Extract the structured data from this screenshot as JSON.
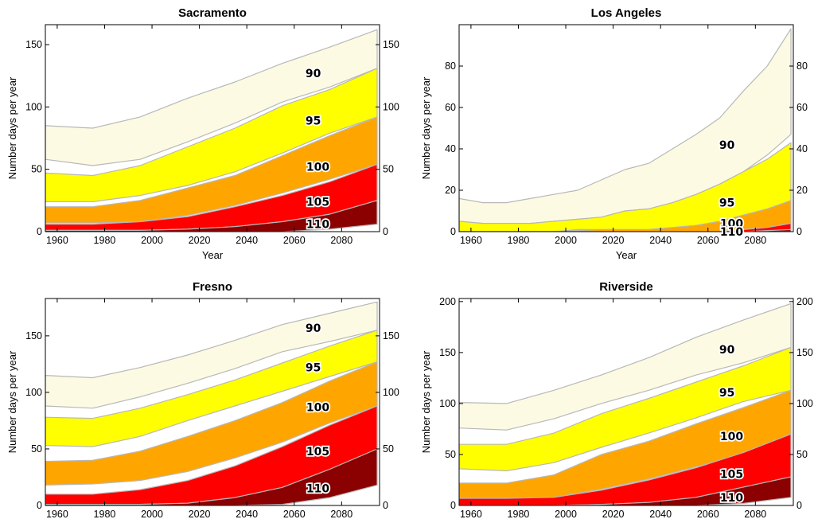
{
  "colors": {
    "90": "#fcfae3",
    "95": "#ffff00",
    "100": "#ffa500",
    "105": "#ff0000",
    "110": "#8b0000",
    "boundary": "#b8b8b8"
  },
  "chart_data": [
    {
      "type": "area",
      "title": "Sacramento",
      "xlabel": "Year",
      "ylabel": "Number days per year",
      "xlim": [
        1955,
        2096
      ],
      "ylim": [
        0,
        166
      ],
      "xticks": [
        1960,
        1980,
        2000,
        2020,
        2040,
        2060,
        2080
      ],
      "yticks": [
        0,
        50,
        100,
        150
      ],
      "series": [
        {
          "name": "90",
          "x": [
            1955,
            1975,
            1995,
            2015,
            2035,
            2055,
            2075,
            2095
          ],
          "lower": [
            58,
            53,
            58,
            72,
            87,
            104,
            116,
            131
          ],
          "upper": [
            85,
            83,
            92,
            107,
            120,
            135,
            148,
            162
          ]
        },
        {
          "name": "95",
          "x": [
            1955,
            1975,
            1995,
            2015,
            2035,
            2055,
            2075,
            2095
          ],
          "lower": [
            24,
            24,
            29,
            37,
            48,
            63,
            79,
            92
          ],
          "upper": [
            47,
            45,
            53,
            68,
            83,
            101,
            114,
            131
          ]
        },
        {
          "name": "100",
          "x": [
            1955,
            1975,
            1995,
            2015,
            2035,
            2055,
            2075,
            2095
          ],
          "lower": [
            7,
            7,
            8,
            13,
            21,
            31,
            42,
            54
          ],
          "upper": [
            20,
            20,
            25,
            35,
            45,
            61,
            77,
            92
          ]
        },
        {
          "name": "105",
          "x": [
            1955,
            1975,
            1995,
            2015,
            2035,
            2055,
            2075,
            2095
          ],
          "lower": [
            1,
            1,
            1,
            2,
            4,
            8,
            14,
            25
          ],
          "upper": [
            6,
            6,
            8,
            12,
            20,
            29,
            40,
            54
          ]
        },
        {
          "name": "110",
          "x": [
            1955,
            1975,
            1995,
            2015,
            2035,
            2055,
            2075,
            2095
          ],
          "lower": [
            0,
            0,
            0,
            0,
            0,
            0,
            2,
            6
          ],
          "upper": [
            1,
            1,
            1,
            2,
            4,
            8,
            14,
            25
          ]
        }
      ]
    },
    {
      "type": "area",
      "title": "Los Angeles",
      "xlabel": "Year",
      "ylabel": "Number days per year",
      "xlim": [
        1955,
        2096
      ],
      "ylim": [
        0,
        100
      ],
      "xticks": [
        1960,
        1980,
        2000,
        2020,
        2040,
        2060,
        2080
      ],
      "yticks": [
        0,
        20,
        40,
        60,
        80
      ],
      "series": [
        {
          "name": "90",
          "x": [
            1955,
            1965,
            1975,
            1985,
            1995,
            2005,
            2015,
            2025,
            2035,
            2045,
            2055,
            2065,
            2075,
            2085,
            2095
          ],
          "lower": [
            5,
            4,
            4,
            4,
            5,
            6,
            7,
            10,
            11,
            14,
            18,
            23,
            29,
            37,
            47
          ],
          "upper": [
            16,
            14,
            14,
            16,
            18,
            20,
            25,
            30,
            33,
            40,
            47,
            55,
            68,
            80,
            98
          ]
        },
        {
          "name": "95",
          "x": [
            1955,
            1965,
            1975,
            1985,
            1995,
            2005,
            2015,
            2025,
            2035,
            2045,
            2055,
            2065,
            2075,
            2085,
            2095
          ],
          "lower": [
            0,
            0,
            0,
            0,
            0,
            1,
            1,
            1,
            1,
            2,
            3,
            5,
            8,
            11,
            15
          ],
          "upper": [
            5,
            4,
            4,
            4,
            5,
            6,
            7,
            10,
            11,
            14,
            18,
            23,
            29,
            35,
            43
          ]
        },
        {
          "name": "100",
          "x": [
            1955,
            1975,
            1995,
            2015,
            2035,
            2055,
            2065,
            2075,
            2085,
            2095
          ],
          "lower": [
            0,
            0,
            0,
            0,
            0,
            0,
            0,
            1,
            2,
            4
          ],
          "upper": [
            0,
            0,
            0,
            1,
            1,
            3,
            5,
            8,
            11,
            15
          ]
        },
        {
          "name": "105",
          "x": [
            1955,
            1975,
            1995,
            2015,
            2035,
            2055,
            2065,
            2075,
            2085,
            2095
          ],
          "lower": [
            0,
            0,
            0,
            0,
            0,
            0,
            0,
            0,
            0,
            1
          ],
          "upper": [
            0,
            0,
            0,
            0,
            0,
            0,
            0,
            1,
            2,
            4
          ]
        },
        {
          "name": "110",
          "x": [
            1955,
            2055,
            2075,
            2095
          ],
          "lower": [
            0,
            0,
            0,
            0
          ],
          "upper": [
            0,
            0,
            0,
            1
          ]
        }
      ]
    },
    {
      "type": "area",
      "title": "Fresno",
      "xlabel": "",
      "ylabel": "Number days per year",
      "xlim": [
        1955,
        2096
      ],
      "ylim": [
        0,
        183
      ],
      "xticks": [
        1960,
        1980,
        2000,
        2020,
        2040,
        2060,
        2080
      ],
      "yticks": [
        0,
        50,
        100,
        150
      ],
      "series": [
        {
          "name": "90",
          "x": [
            1955,
            1975,
            1995,
            2015,
            2035,
            2055,
            2075,
            2095
          ],
          "lower": [
            88,
            86,
            96,
            108,
            121,
            136,
            145,
            155
          ],
          "upper": [
            115,
            113,
            122,
            133,
            146,
            160,
            170,
            180
          ]
        },
        {
          "name": "95",
          "x": [
            1955,
            1975,
            1995,
            2015,
            2035,
            2055,
            2075,
            2095
          ],
          "lower": [
            53,
            52,
            61,
            75,
            88,
            101,
            114,
            127
          ],
          "upper": [
            78,
            77,
            86,
            98,
            111,
            126,
            141,
            155
          ]
        },
        {
          "name": "100",
          "x": [
            1955,
            1975,
            1995,
            2015,
            2035,
            2055,
            2075,
            2095
          ],
          "lower": [
            18,
            19,
            22,
            30,
            42,
            56,
            73,
            88
          ],
          "upper": [
            39,
            40,
            48,
            61,
            75,
            91,
            110,
            127
          ]
        },
        {
          "name": "105",
          "x": [
            1955,
            1975,
            1995,
            2015,
            2035,
            2055,
            2075,
            2095
          ],
          "lower": [
            1,
            1,
            1,
            2,
            7,
            16,
            32,
            50
          ],
          "upper": [
            10,
            10,
            14,
            22,
            35,
            52,
            71,
            88
          ]
        },
        {
          "name": "110",
          "x": [
            1955,
            1975,
            1995,
            2015,
            2035,
            2055,
            2075,
            2095
          ],
          "lower": [
            0,
            0,
            0,
            0,
            0,
            1,
            7,
            18
          ],
          "upper": [
            1,
            1,
            1,
            2,
            7,
            16,
            32,
            50
          ]
        }
      ]
    },
    {
      "type": "area",
      "title": "Riverside",
      "xlabel": "",
      "ylabel": "Number days per year",
      "xlim": [
        1955,
        2096
      ],
      "ylim": [
        0,
        203
      ],
      "xticks": [
        1960,
        1980,
        2000,
        2020,
        2040,
        2060,
        2080
      ],
      "yticks": [
        0,
        50,
        100,
        150,
        200
      ],
      "series": [
        {
          "name": "90",
          "x": [
            1955,
            1975,
            1995,
            2015,
            2035,
            2055,
            2075,
            2095
          ],
          "lower": [
            76,
            74,
            85,
            100,
            113,
            128,
            140,
            155
          ],
          "upper": [
            101,
            100,
            113,
            128,
            145,
            165,
            182,
            198
          ]
        },
        {
          "name": "95",
          "x": [
            1955,
            1975,
            1995,
            2015,
            2035,
            2055,
            2075,
            2095
          ],
          "lower": [
            36,
            34,
            42,
            57,
            71,
            86,
            102,
            113
          ],
          "upper": [
            60,
            60,
            71,
            90,
            105,
            121,
            137,
            155
          ]
        },
        {
          "name": "100",
          "x": [
            1955,
            1975,
            1995,
            2015,
            2035,
            2055,
            2075,
            2095
          ],
          "lower": [
            7,
            7,
            8,
            16,
            26,
            38,
            50,
            70
          ],
          "upper": [
            22,
            22,
            30,
            50,
            63,
            80,
            96,
            113
          ]
        },
        {
          "name": "105",
          "x": [
            1955,
            1975,
            1995,
            2015,
            2035,
            2055,
            2075,
            2095
          ],
          "lower": [
            0,
            0,
            0,
            1,
            3,
            8,
            18,
            28
          ],
          "upper": [
            7,
            7,
            8,
            15,
            25,
            37,
            52,
            70
          ]
        },
        {
          "name": "110",
          "x": [
            1955,
            1975,
            1995,
            2015,
            2035,
            2055,
            2075,
            2095
          ],
          "lower": [
            0,
            0,
            0,
            0,
            0,
            0,
            2,
            8
          ],
          "upper": [
            0,
            0,
            0,
            1,
            3,
            8,
            18,
            28
          ]
        }
      ]
    }
  ],
  "band_labels": [
    [
      {
        "text": "90",
        "x": 2068,
        "y": 127
      },
      {
        "text": "95",
        "x": 2068,
        "y": 89
      },
      {
        "text": "100",
        "x": 2070,
        "y": 52
      },
      {
        "text": "105",
        "x": 2070,
        "y": 24
      },
      {
        "text": "110",
        "x": 2070,
        "y": 6
      }
    ],
    [
      {
        "text": "90",
        "x": 2068,
        "y": 42
      },
      {
        "text": "95",
        "x": 2068,
        "y": 14
      },
      {
        "text": "100",
        "x": 2070,
        "y": 4
      },
      {
        "text": "110",
        "x": 2070,
        "y": 0
      }
    ],
    [
      {
        "text": "90",
        "x": 2068,
        "y": 157
      },
      {
        "text": "95",
        "x": 2068,
        "y": 122
      },
      {
        "text": "100",
        "x": 2070,
        "y": 87
      },
      {
        "text": "105",
        "x": 2070,
        "y": 48
      },
      {
        "text": "110",
        "x": 2070,
        "y": 15
      }
    ],
    [
      {
        "text": "90",
        "x": 2068,
        "y": 153
      },
      {
        "text": "95",
        "x": 2068,
        "y": 111
      },
      {
        "text": "100",
        "x": 2070,
        "y": 68
      },
      {
        "text": "105",
        "x": 2070,
        "y": 31
      },
      {
        "text": "110",
        "x": 2070,
        "y": 8
      }
    ]
  ]
}
